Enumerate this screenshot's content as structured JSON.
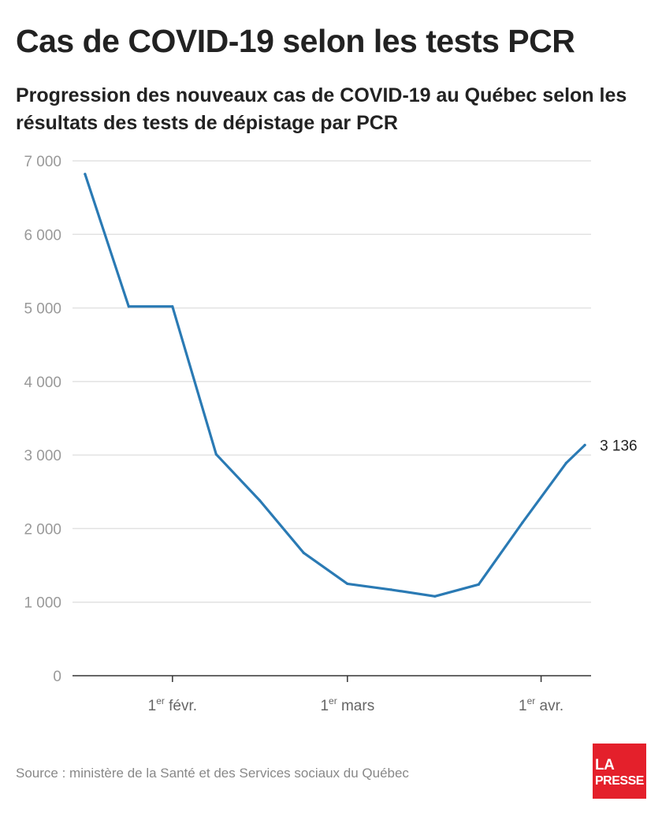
{
  "header": {
    "title": "Cas de COVID-19 selon les tests PCR",
    "subtitle": "Progression des nouveaux cas de COVID-19 au Québec selon les résultats des tests de dépistage par PCR"
  },
  "footer": {
    "source": "Source : ministère de la Santé et des Services sociaux du Québec",
    "logo_line1": "LA",
    "logo_line2": "PRESSE"
  },
  "colors": {
    "line": "#2a7ab4",
    "grid": "#e2e2e2",
    "axis_text": "#999999",
    "logo": "#e4202b"
  },
  "chart_data": {
    "type": "line",
    "title": "Cas de COVID-19 selon les tests PCR",
    "subtitle": "Progression des nouveaux cas de COVID-19 au Québec selon les résultats des tests de dépistage par PCR",
    "xlabel": "",
    "ylabel": "",
    "ylim": [
      0,
      7000
    ],
    "xlim": [
      "2022-01-16",
      "2022-04-09"
    ],
    "yticks": [
      0,
      1000,
      2000,
      3000,
      4000,
      5000,
      6000,
      7000
    ],
    "ytick_labels": [
      "0",
      "1 000",
      "2 000",
      "3 000",
      "4 000",
      "5 000",
      "6 000",
      "7 000"
    ],
    "xticks": [
      {
        "date": "2022-02-01",
        "sup": "er",
        "after": "févr."
      },
      {
        "date": "2022-03-01",
        "sup": "er",
        "after": "mars"
      },
      {
        "date": "2022-04-01",
        "sup": "er",
        "after": "avr."
      }
    ],
    "xtick_prefix": "1",
    "grid": true,
    "series": [
      {
        "x": [
          "2022-01-18",
          "2022-01-25",
          "2022-02-01",
          "2022-02-08",
          "2022-02-15",
          "2022-02-22",
          "2022-03-01",
          "2022-03-08",
          "2022-03-15",
          "2022-03-22",
          "2022-03-29",
          "2022-04-05",
          "2022-04-08"
        ],
        "values": [
          6820,
          5020,
          5020,
          3010,
          2380,
          1670,
          1250,
          1170,
          1080,
          1240,
          2080,
          2890,
          3136
        ]
      }
    ],
    "end_label": "3 136"
  }
}
